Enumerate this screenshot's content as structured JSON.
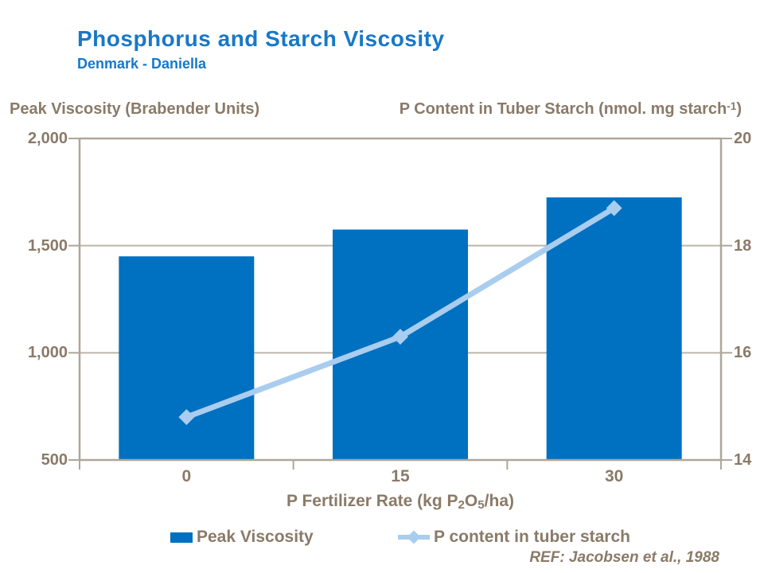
{
  "page": {
    "title": "Phosphorus and Starch Viscosity",
    "subtitle": "Denmark - Daniella",
    "footnote": "REF: Jacobsen et al., 1988"
  },
  "colors": {
    "title_blue": "#1778C8",
    "bar_blue": "#0070C0",
    "line_blue": "#A9CDEE",
    "text_brown": "#8A7A68",
    "frame_tan": "#AFA699",
    "grid_tan": "#BDB5AA",
    "background": "#FFFFFF"
  },
  "axis_titles": {
    "left": "Peak Viscosity (Brabender Units)",
    "right_main": "P Content in Tuber Starch (nmol. mg starch",
    "right_sup": "-1",
    "right_end": ")",
    "x_p1": "P Fertilizer Rate (kg P",
    "x_sub1": "2",
    "x_p2": "O",
    "x_sub2": "5",
    "x_p3": "/ha)"
  },
  "legend": {
    "bar_label": "Peak Viscosity",
    "line_label": "P content in tuber starch"
  },
  "chart_data": {
    "type": "combo-bar-line",
    "title": "Phosphorus and Starch Viscosity",
    "subtitle": "Denmark - Daniella",
    "categories": [
      "0",
      "15",
      "30"
    ],
    "series": [
      {
        "name": "Peak Viscosity",
        "type": "bar",
        "axis": "left",
        "color": "#0070C0",
        "values": [
          1450,
          1575,
          1725
        ]
      },
      {
        "name": "P content in tuber starch",
        "type": "line",
        "axis": "right",
        "marker": "diamond",
        "color": "#A9CDEE",
        "values": [
          14.8,
          16.3,
          18.7
        ]
      }
    ],
    "left_axis": {
      "label": "Peak Viscosity (Brabender Units)",
      "min": 500,
      "max": 2000,
      "tick_values": [
        2000,
        1500,
        1000,
        500
      ],
      "tick_labels": [
        "2,000",
        "1,500",
        "1,000",
        "500"
      ]
    },
    "right_axis": {
      "label": "P Content in Tuber Starch (nmol. mg starch-1)",
      "min": 14,
      "max": 20,
      "tick_values": [
        20,
        18,
        16,
        14
      ],
      "tick_labels": [
        "20",
        "18",
        "16",
        "14"
      ]
    },
    "x_axis": {
      "label": "P Fertilizer Rate (kg P2O5/ha)",
      "tick_labels": [
        "0",
        "15",
        "30"
      ]
    },
    "gridlines_left_values": [
      1500,
      1000
    ],
    "grid": true,
    "legend_position": "bottom",
    "footnote": "REF: Jacobsen et al., 1988"
  }
}
